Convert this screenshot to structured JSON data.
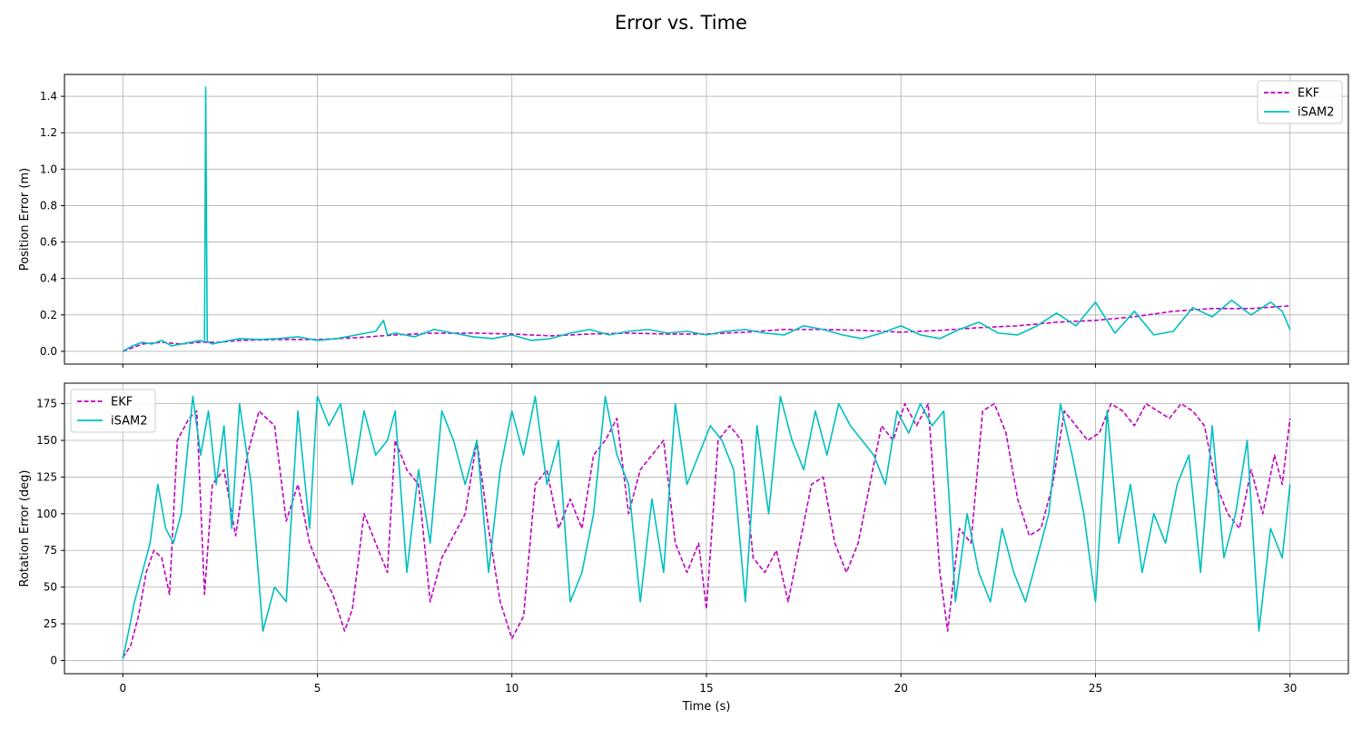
{
  "figure": {
    "title": "Error vs. Time",
    "colors": {
      "EKF": "#bf00bf",
      "iSAM2": "#00bfbf",
      "grid": "#b0b0b0"
    }
  },
  "chart_data": [
    {
      "type": "line",
      "xlabel": "",
      "ylabel": "Position Error (m)",
      "xlim": [
        -1.5,
        31.5
      ],
      "ylim": [
        -0.07,
        1.52
      ],
      "xticks": [
        0,
        5,
        10,
        15,
        20,
        25,
        30
      ],
      "yticks": [
        0.0,
        0.2,
        0.4,
        0.6,
        0.8,
        1.0,
        1.2,
        1.4
      ],
      "ytick_labels": [
        "0.0",
        "0.2",
        "0.4",
        "0.6",
        "0.8",
        "1.0",
        "1.2",
        "1.4"
      ],
      "grid": true,
      "legend": "upper-right",
      "series": [
        {
          "name": "EKF",
          "style": "dashed",
          "x": [
            0,
            0.5,
            1,
            1.5,
            2,
            2.5,
            3,
            4,
            5,
            6,
            7,
            8,
            9,
            10,
            11,
            12,
            13,
            14,
            15,
            16,
            17,
            18,
            19,
            20,
            21,
            22,
            23,
            24,
            25,
            26,
            27,
            28,
            29,
            30
          ],
          "y": [
            0.0,
            0.04,
            0.05,
            0.04,
            0.05,
            0.05,
            0.06,
            0.065,
            0.065,
            0.075,
            0.09,
            0.1,
            0.1,
            0.095,
            0.085,
            0.095,
            0.1,
            0.095,
            0.095,
            0.105,
            0.12,
            0.12,
            0.115,
            0.105,
            0.115,
            0.13,
            0.14,
            0.16,
            0.17,
            0.19,
            0.22,
            0.235,
            0.235,
            0.25
          ]
        },
        {
          "name": "iSAM2",
          "style": "solid",
          "x": [
            0,
            0.25,
            0.5,
            0.75,
            1,
            1.25,
            1.5,
            1.75,
            2,
            2.1,
            2.13,
            2.17,
            2.2,
            2.3,
            2.5,
            3,
            3.5,
            4,
            4.5,
            5,
            5.5,
            6,
            6.5,
            6.7,
            6.8,
            7,
            7.5,
            8,
            8.5,
            9,
            9.5,
            10,
            10.5,
            11,
            11.5,
            12,
            12.5,
            13,
            13.5,
            14,
            14.5,
            15,
            15.5,
            16,
            16.5,
            17,
            17.5,
            18,
            18.5,
            19,
            19.5,
            20,
            20.5,
            21,
            21.5,
            22,
            22.5,
            23,
            23.5,
            24,
            24.5,
            25,
            25.5,
            26,
            26.5,
            27,
            27.5,
            28,
            28.5,
            29,
            29.5,
            29.8,
            30
          ],
          "y": [
            0.0,
            0.03,
            0.05,
            0.04,
            0.06,
            0.03,
            0.04,
            0.05,
            0.06,
            0.05,
            1.45,
            0.06,
            0.05,
            0.04,
            0.05,
            0.07,
            0.065,
            0.07,
            0.08,
            0.06,
            0.07,
            0.09,
            0.11,
            0.17,
            0.09,
            0.1,
            0.08,
            0.12,
            0.1,
            0.08,
            0.07,
            0.09,
            0.06,
            0.07,
            0.1,
            0.12,
            0.09,
            0.11,
            0.12,
            0.1,
            0.11,
            0.09,
            0.11,
            0.12,
            0.1,
            0.09,
            0.14,
            0.12,
            0.09,
            0.07,
            0.1,
            0.14,
            0.09,
            0.07,
            0.12,
            0.16,
            0.1,
            0.09,
            0.14,
            0.21,
            0.14,
            0.27,
            0.1,
            0.22,
            0.09,
            0.11,
            0.24,
            0.19,
            0.28,
            0.2,
            0.27,
            0.22,
            0.12
          ]
        }
      ]
    },
    {
      "type": "line",
      "xlabel": "Time (s)",
      "ylabel": "Rotation Error (deg)",
      "xlim": [
        -1.5,
        31.5
      ],
      "ylim": [
        -9,
        189
      ],
      "xticks": [
        0,
        5,
        10,
        15,
        20,
        25,
        30
      ],
      "yticks": [
        0,
        25,
        50,
        75,
        100,
        125,
        150,
        175
      ],
      "ytick_labels": [
        "0",
        "25",
        "50",
        "75",
        "100",
        "125",
        "150",
        "175"
      ],
      "grid": true,
      "legend": "upper-left",
      "series": [
        {
          "name": "EKF",
          "style": "dashed",
          "x": [
            0,
            0.2,
            0.4,
            0.6,
            0.8,
            1.0,
            1.2,
            1.4,
            1.7,
            1.9,
            2.1,
            2.3,
            2.6,
            2.9,
            3.2,
            3.5,
            3.9,
            4.2,
            4.5,
            4.8,
            5.1,
            5.4,
            5.7,
            5.9,
            6.2,
            6.5,
            6.8,
            7.0,
            7.3,
            7.6,
            7.9,
            8.2,
            8.5,
            8.8,
            9.1,
            9.4,
            9.7,
            10.0,
            10.3,
            10.6,
            10.9,
            11.2,
            11.5,
            11.8,
            12.1,
            12.4,
            12.7,
            13.0,
            13.3,
            13.6,
            13.9,
            14.2,
            14.5,
            14.8,
            15.0,
            15.3,
            15.6,
            15.9,
            16.2,
            16.5,
            16.8,
            17.1,
            17.4,
            17.7,
            18.0,
            18.3,
            18.6,
            18.9,
            19.2,
            19.5,
            19.8,
            20.1,
            20.4,
            20.7,
            21.0,
            21.2,
            21.5,
            21.8,
            22.1,
            22.4,
            22.7,
            23.0,
            23.3,
            23.6,
            23.9,
            24.2,
            24.5,
            24.8,
            25.1,
            25.4,
            25.7,
            26.0,
            26.3,
            26.6,
            26.9,
            27.2,
            27.5,
            27.8,
            28.1,
            28.4,
            28.7,
            29.0,
            29.3,
            29.6,
            29.8,
            30.0
          ],
          "y": [
            2,
            10,
            30,
            60,
            75,
            70,
            45,
            150,
            165,
            170,
            45,
            120,
            130,
            85,
            140,
            170,
            160,
            95,
            120,
            80,
            60,
            45,
            20,
            35,
            100,
            80,
            60,
            150,
            130,
            120,
            40,
            70,
            85,
            100,
            150,
            90,
            40,
            15,
            30,
            120,
            130,
            90,
            110,
            90,
            140,
            150,
            165,
            100,
            130,
            140,
            150,
            80,
            60,
            80,
            35,
            150,
            160,
            150,
            70,
            60,
            75,
            40,
            80,
            120,
            125,
            80,
            60,
            80,
            120,
            160,
            150,
            175,
            160,
            175,
            60,
            20,
            90,
            80,
            170,
            175,
            155,
            110,
            85,
            90,
            120,
            170,
            160,
            150,
            155,
            175,
            170,
            160,
            175,
            170,
            165,
            175,
            170,
            160,
            120,
            100,
            90,
            130,
            100,
            140,
            120,
            165
          ]
        },
        {
          "name": "iSAM2",
          "style": "solid",
          "x": [
            0,
            0.15,
            0.3,
            0.5,
            0.7,
            0.9,
            1.1,
            1.3,
            1.5,
            1.8,
            2.0,
            2.2,
            2.4,
            2.6,
            2.8,
            3.0,
            3.3,
            3.6,
            3.9,
            4.2,
            4.5,
            4.8,
            5.0,
            5.3,
            5.6,
            5.9,
            6.2,
            6.5,
            6.8,
            7.0,
            7.3,
            7.6,
            7.9,
            8.2,
            8.5,
            8.8,
            9.1,
            9.4,
            9.7,
            10.0,
            10.3,
            10.6,
            10.9,
            11.2,
            11.5,
            11.8,
            12.1,
            12.4,
            12.7,
            13.0,
            13.3,
            13.6,
            13.9,
            14.2,
            14.5,
            14.8,
            15.1,
            15.4,
            15.7,
            16.0,
            16.3,
            16.6,
            16.9,
            17.2,
            17.5,
            17.8,
            18.1,
            18.4,
            18.7,
            19.0,
            19.3,
            19.6,
            19.9,
            20.2,
            20.5,
            20.8,
            21.1,
            21.4,
            21.7,
            22.0,
            22.3,
            22.6,
            22.9,
            23.2,
            23.5,
            23.8,
            24.1,
            24.4,
            24.7,
            25.0,
            25.3,
            25.6,
            25.9,
            26.2,
            26.5,
            26.8,
            27.1,
            27.4,
            27.7,
            28.0,
            28.3,
            28.6,
            28.9,
            29.2,
            29.5,
            29.8,
            30.0
          ],
          "y": [
            1,
            20,
            40,
            60,
            80,
            120,
            90,
            80,
            100,
            180,
            140,
            170,
            120,
            160,
            90,
            175,
            120,
            20,
            50,
            40,
            170,
            90,
            180,
            160,
            175,
            120,
            170,
            140,
            150,
            170,
            60,
            130,
            80,
            170,
            150,
            120,
            150,
            60,
            130,
            170,
            140,
            180,
            120,
            150,
            40,
            60,
            100,
            180,
            140,
            120,
            40,
            110,
            60,
            175,
            120,
            140,
            160,
            150,
            130,
            40,
            160,
            100,
            180,
            150,
            130,
            170,
            140,
            175,
            160,
            150,
            140,
            120,
            170,
            155,
            175,
            160,
            170,
            40,
            100,
            60,
            40,
            90,
            60,
            40,
            70,
            100,
            175,
            140,
            100,
            40,
            170,
            80,
            120,
            60,
            100,
            80,
            120,
            140,
            60,
            160,
            70,
            100,
            150,
            20,
            90,
            70,
            120
          ]
        }
      ]
    }
  ]
}
